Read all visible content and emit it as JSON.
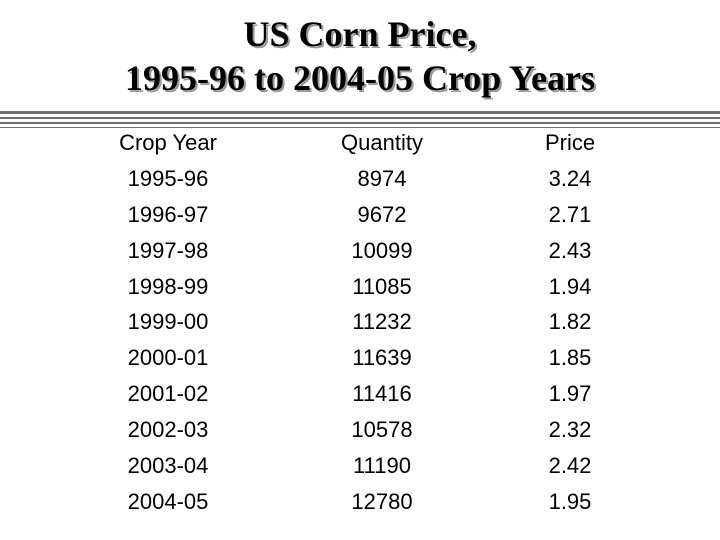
{
  "title": {
    "line1": "US Corn Price,",
    "line2": "1995-96 to 2004-05 Crop Years"
  },
  "table": {
    "headers": {
      "crop_year": "Crop Year",
      "quantity": "Quantity",
      "price": "Price"
    },
    "rows": [
      {
        "crop_year": "1995-96",
        "quantity": "8974",
        "price": "3.24"
      },
      {
        "crop_year": "1996-97",
        "quantity": "9672",
        "price": "2.71"
      },
      {
        "crop_year": "1997-98",
        "quantity": "10099",
        "price": "2.43"
      },
      {
        "crop_year": "1998-99",
        "quantity": "11085",
        "price": "1.94"
      },
      {
        "crop_year": "1999-00",
        "quantity": "11232",
        "price": "1.82"
      },
      {
        "crop_year": "2000-01",
        "quantity": "11639",
        "price": "1.85"
      },
      {
        "crop_year": "2001-02",
        "quantity": "11416",
        "price": "1.97"
      },
      {
        "crop_year": "2002-03",
        "quantity": "10578",
        "price": "2.32"
      },
      {
        "crop_year": "2003-04",
        "quantity": "11190",
        "price": "2.42"
      },
      {
        "crop_year": "2004-05",
        "quantity": "12780",
        "price": "1.95"
      }
    ]
  }
}
